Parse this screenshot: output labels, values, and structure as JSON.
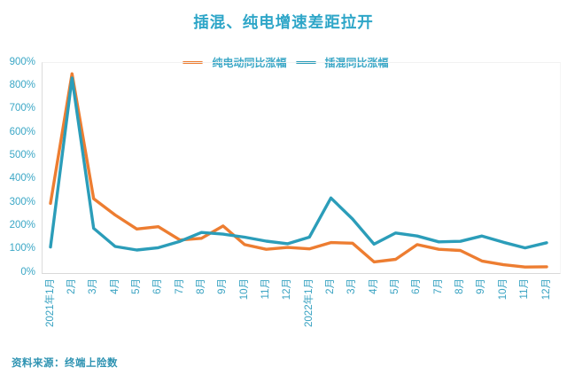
{
  "page": {
    "title": "插混、纯电增速差距拉开",
    "source_note": "资料来源：终端上险数"
  },
  "chart_data": {
    "type": "line",
    "title": "插混、纯电增速差距拉开",
    "xlabel": "",
    "ylabel": "",
    "ylim": [
      0,
      900
    ],
    "grid": false,
    "legend_position": "top-center",
    "y_tick_labels": [
      "900%",
      "800%",
      "700%",
      "600%",
      "500%",
      "400%",
      "300%",
      "200%",
      "100%",
      "0%"
    ],
    "y_tick_values": [
      900,
      800,
      700,
      600,
      500,
      400,
      300,
      200,
      100,
      0
    ],
    "x_labels": [
      "2021年1月",
      "2月",
      "3月",
      "4月",
      "5月",
      "6月",
      "7月",
      "8月",
      "9月",
      "10月",
      "11月",
      "12月",
      "2022年1月",
      "2月",
      "3月",
      "4月",
      "5月",
      "6月",
      "7月",
      "8月",
      "9月",
      "10月",
      "11月",
      "12月"
    ],
    "unit": "%",
    "series": [
      {
        "name": "纯电动同比涨幅",
        "color": "#ED7D31",
        "values": [
          295,
          850,
          315,
          245,
          185,
          195,
          138,
          145,
          198,
          118,
          98,
          106,
          100,
          127,
          124,
          44,
          55,
          118,
          98,
          93,
          48,
          32,
          22,
          23
        ]
      },
      {
        "name": "插混同比涨幅",
        "color": "#2B9DB9",
        "values": [
          108,
          832,
          188,
          110,
          95,
          105,
          132,
          170,
          163,
          150,
          133,
          122,
          150,
          318,
          228,
          120,
          168,
          155,
          130,
          132,
          155,
          128,
          104,
          126
        ]
      }
    ]
  }
}
